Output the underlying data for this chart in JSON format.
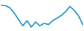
{
  "y_values": [
    -1,
    -1.2,
    -2,
    -4,
    -6.5,
    -9,
    -7,
    -9.5,
    -7.5,
    -9,
    -8,
    -8.5,
    -7,
    -6,
    -5,
    -3.5,
    -1.5,
    -3,
    -5,
    -8.5
  ],
  "line_color": "#2196C4",
  "line_width": 1.3,
  "background_color": "#ffffff",
  "ylim": [
    -11,
    1
  ]
}
